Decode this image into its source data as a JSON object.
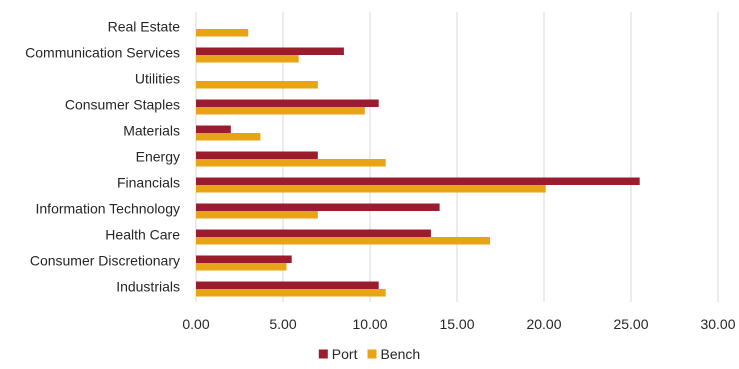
{
  "chart_data": {
    "type": "bar",
    "orientation": "horizontal",
    "categories": [
      "Real Estate",
      "Communication Services",
      "Utilities",
      "Consumer Staples",
      "Materials",
      "Energy",
      "Financials",
      "Information Technology",
      "Health Care",
      "Consumer Discretionary",
      "Industrials"
    ],
    "series": [
      {
        "name": "Port",
        "color": "#9b1c2e",
        "values": [
          0,
          8.5,
          0,
          10.5,
          2.0,
          7.0,
          25.5,
          14.0,
          13.5,
          5.5,
          10.5
        ]
      },
      {
        "name": "Bench",
        "color": "#e8a317",
        "values": [
          3.0,
          5.9,
          7.0,
          9.7,
          3.7,
          10.9,
          20.1,
          7.0,
          16.9,
          5.2,
          10.9
        ]
      }
    ],
    "xlim": [
      0,
      30
    ],
    "xticks": [
      "0.00",
      "5.00",
      "10.00",
      "15.00",
      "20.00",
      "25.00",
      "30.00"
    ],
    "grid": true,
    "legend_position": "bottom",
    "title": "",
    "xlabel": "",
    "ylabel": ""
  }
}
